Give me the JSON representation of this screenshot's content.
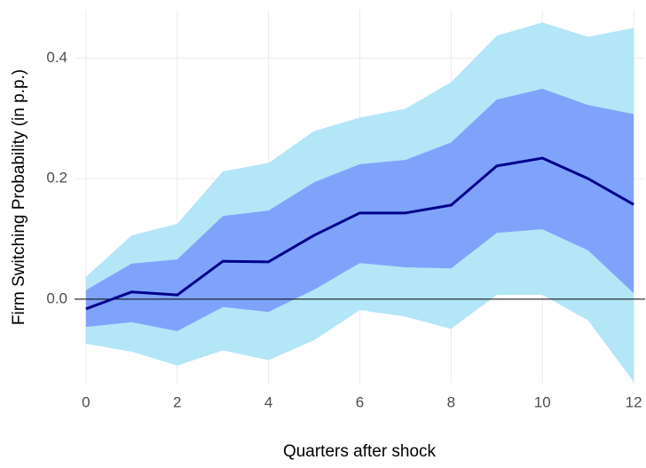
{
  "chart_data": {
    "type": "line",
    "x_label": "Quarters after shock",
    "y_label": "Firm Switching Probability (in p.p.)",
    "x": [
      0,
      1,
      2,
      3,
      4,
      5,
      6,
      7,
      8,
      9,
      10,
      11,
      12
    ],
    "xlim": [
      -0.25,
      12.25
    ],
    "xticks": [
      0,
      2,
      4,
      6,
      8,
      10,
      12
    ],
    "ylim": [
      -0.14,
      0.48
    ],
    "yticks": [
      {
        "value": 0,
        "label": "0.0"
      },
      0.2,
      0.4
    ],
    "grid": true,
    "hline": 0,
    "bands": [
      {
        "color": "#b3e6f7",
        "upper": [
          0.037,
          0.106,
          0.125,
          0.212,
          0.226,
          0.279,
          0.301,
          0.316,
          0.36,
          0.437,
          0.459,
          0.435,
          0.45
        ],
        "lower": [
          -0.074,
          -0.087,
          -0.11,
          -0.085,
          -0.101,
          -0.068,
          -0.018,
          -0.029,
          -0.049,
          0.007,
          0.007,
          -0.035,
          -0.137
        ]
      },
      {
        "color": "#7fa3fa",
        "upper": [
          0.015,
          0.059,
          0.066,
          0.138,
          0.147,
          0.194,
          0.224,
          0.231,
          0.26,
          0.331,
          0.349,
          0.322,
          0.307
        ],
        "lower": [
          -0.046,
          -0.038,
          -0.053,
          -0.013,
          -0.021,
          0.016,
          0.06,
          0.053,
          0.051,
          0.11,
          0.116,
          0.081,
          0.01
        ]
      }
    ],
    "series": [
      {
        "color": "#00008b",
        "values": [
          -0.016,
          0.012,
          0.007,
          0.063,
          0.062,
          0.106,
          0.143,
          0.143,
          0.156,
          0.221,
          0.234,
          0.2,
          0.157
        ]
      }
    ]
  }
}
